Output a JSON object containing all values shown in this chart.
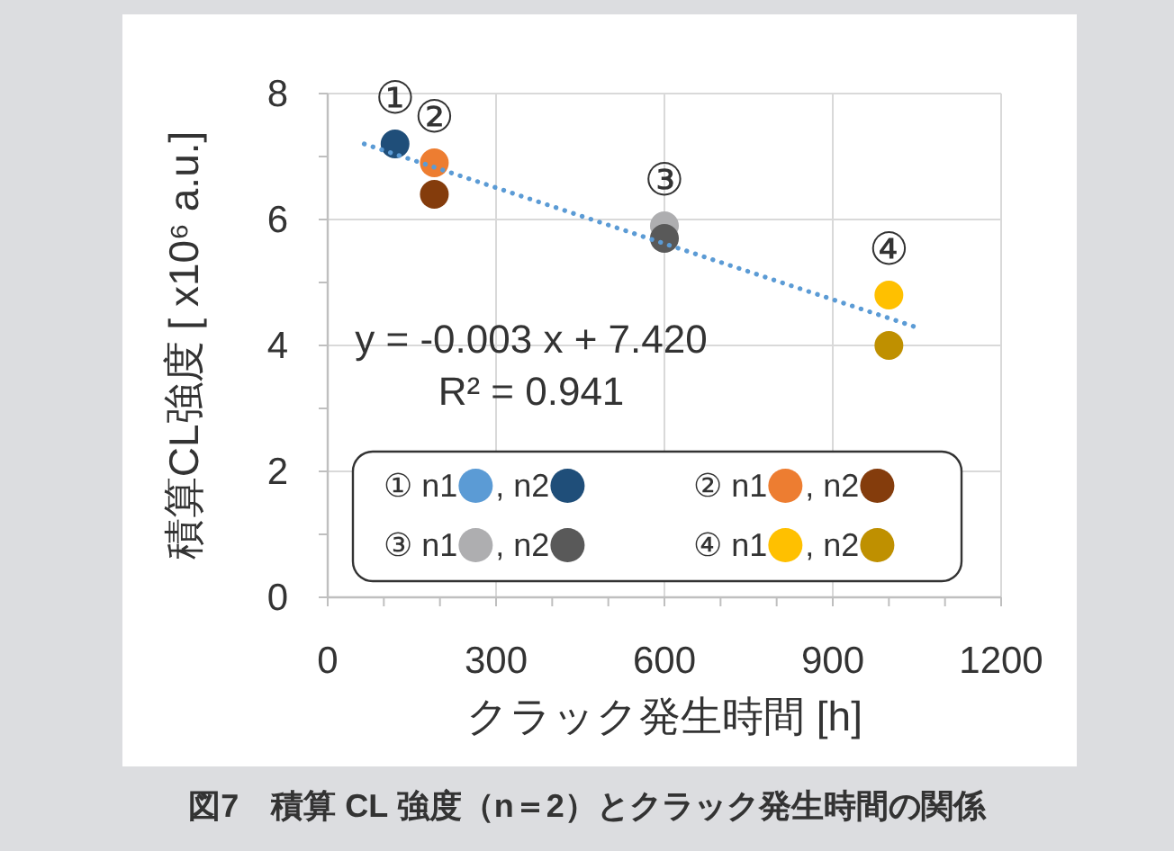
{
  "chart_data": {
    "type": "scatter",
    "title": "図7　積算 CL 強度（n＝2）とクラック発生時間の関係",
    "xlabel": "クラック発生時間 [h]",
    "ylabel": "積算CL強度 [ x10⁶  a.u.]",
    "xlim": [
      0,
      1200
    ],
    "ylim": [
      0,
      8
    ],
    "xticks": [
      0,
      {
        "value": 100,
        "label": null
      },
      {
        "value": 200,
        "label": null
      },
      300,
      {
        "value": 400,
        "label": null
      },
      {
        "value": 500,
        "label": null
      },
      600,
      {
        "value": 700,
        "label": null
      },
      {
        "value": 800,
        "label": null
      },
      900,
      {
        "value": 1000,
        "label": null
      },
      {
        "value": 1100,
        "label": null
      },
      1200
    ],
    "yticks": [
      0,
      {
        "value": 1,
        "label": null
      },
      2,
      {
        "value": 3,
        "label": null
      },
      4,
      {
        "value": 5,
        "label": null
      },
      6,
      {
        "value": 7,
        "label": null
      },
      8
    ],
    "grid": true,
    "legend": "bottom",
    "marker": "circle",
    "series": [
      {
        "name": "① n1",
        "color": "#5b9bd5"
      },
      {
        "name": ", n2",
        "color": "#1f4e79",
        "x": [
          120
        ],
        "values": [
          7.2
        ]
      },
      {
        "name": "② n1",
        "color": "#ed7d31",
        "x": [
          190
        ],
        "values": [
          6.9
        ]
      },
      {
        "name": ", n2",
        "color": "#843c0c",
        "x": [
          190
        ],
        "values": [
          6.4
        ]
      },
      {
        "name": "③ n1",
        "color": "#aeaeb0",
        "x": [
          600
        ],
        "values": [
          5.9
        ]
      },
      {
        "name": ", n2",
        "color": "#595959",
        "x": [
          600
        ],
        "values": [
          5.7
        ]
      },
      {
        "name": "④ n1",
        "color": "#ffc000",
        "x": [
          1000
        ],
        "values": [
          4.8
        ]
      },
      {
        "name": ", n2",
        "color": "#bf9000",
        "x": [
          1000
        ],
        "values": [
          4.0
        ]
      },
      {
        "type": "line",
        "color": "#5b9bd5",
        "line_style": "dotted",
        "marker": "none",
        "x": [
          65,
          1045
        ],
        "values": [
          7.2,
          4.3
        ]
      }
    ],
    "annotations": [
      {
        "text": "①",
        "x": 120,
        "y": 7.2
      },
      {
        "text": "②",
        "x": 190,
        "y": 6.9
      },
      {
        "text": "③",
        "x": 600,
        "y": 5.9
      },
      {
        "text": "④",
        "x": 1000,
        "y": 4.8
      },
      "y = -0.003 x + 7.420",
      "R² = 0.941"
    ]
  }
}
